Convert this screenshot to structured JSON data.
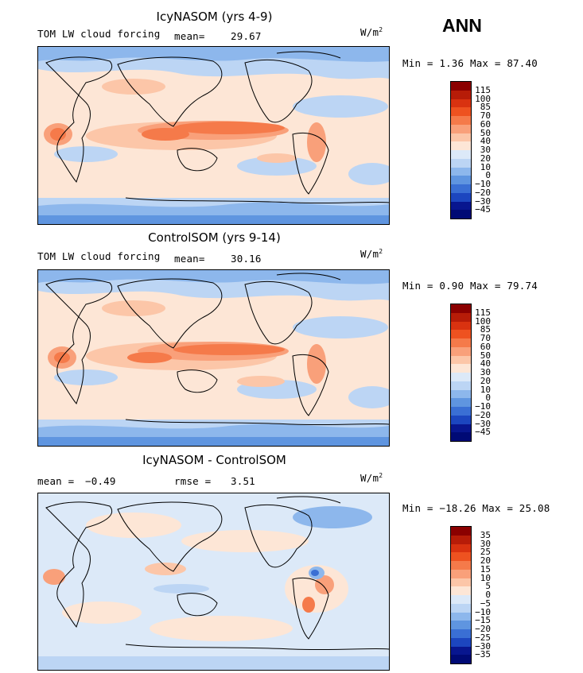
{
  "season": "ANN",
  "panels": [
    {
      "title": "IcyNASOM (yrs 4-9)",
      "field_label": "TOM LW cloud forcing",
      "mean_label": "mean=",
      "mean_value": "29.67",
      "units_base": "W/m",
      "units_exp": "2",
      "minmax": "Min =   1.36 Max =  87.40",
      "colorbar": {
        "labels": [
          "115",
          "100",
          "85",
          "70",
          "60",
          "50",
          "40",
          "30",
          "20",
          "10",
          "0",
          "−10",
          "−20",
          "−30",
          "−45"
        ],
        "colors": [
          "#8b0000",
          "#b71c08",
          "#d93210",
          "#ee5220",
          "#f57a4a",
          "#f9a07a",
          "#fcc6a8",
          "#fde6d6",
          "#dce9f8",
          "#bcd5f4",
          "#8db7ec",
          "#5f95e0",
          "#3a6fd4",
          "#1c46bf",
          "#08168f",
          "#000a75"
        ]
      }
    },
    {
      "title": "ControlSOM (yrs 9-14)",
      "field_label": "TOM LW cloud forcing",
      "mean_label": "mean=",
      "mean_value": "30.16",
      "units_base": "W/m",
      "units_exp": "2",
      "minmax": "Min =   0.90 Max =  79.74",
      "colorbar": {
        "labels": [
          "115",
          "100",
          "85",
          "70",
          "60",
          "50",
          "40",
          "30",
          "20",
          "10",
          "0",
          "−10",
          "−20",
          "−30",
          "−45"
        ],
        "colors": [
          "#8b0000",
          "#b71c08",
          "#d93210",
          "#ee5220",
          "#f57a4a",
          "#f9a07a",
          "#fcc6a8",
          "#fde6d6",
          "#dce9f8",
          "#bcd5f4",
          "#8db7ec",
          "#5f95e0",
          "#3a6fd4",
          "#1c46bf",
          "#08168f",
          "#000a75"
        ]
      }
    },
    {
      "title": "IcyNASOM - ControlSOM",
      "mean_label": "mean =",
      "mean_value": "−0.49",
      "rmse_label": "rmse =",
      "rmse_value": "3.51",
      "units_base": "W/m",
      "units_exp": "2",
      "minmax": "Min = −18.26 Max =  25.08",
      "colorbar": {
        "labels": [
          "35",
          "30",
          "25",
          "20",
          "15",
          "10",
          "5",
          "0",
          "−5",
          "−10",
          "−15",
          "−20",
          "−25",
          "−30",
          "−35"
        ],
        "colors": [
          "#8b0000",
          "#b71c08",
          "#d93210",
          "#ee5220",
          "#f57a4a",
          "#f9a07a",
          "#fcc6a8",
          "#fde6d6",
          "#dce9f8",
          "#bcd5f4",
          "#8db7ec",
          "#5f95e0",
          "#3a6fd4",
          "#1c46bf",
          "#08168f",
          "#000a75"
        ]
      }
    }
  ]
}
